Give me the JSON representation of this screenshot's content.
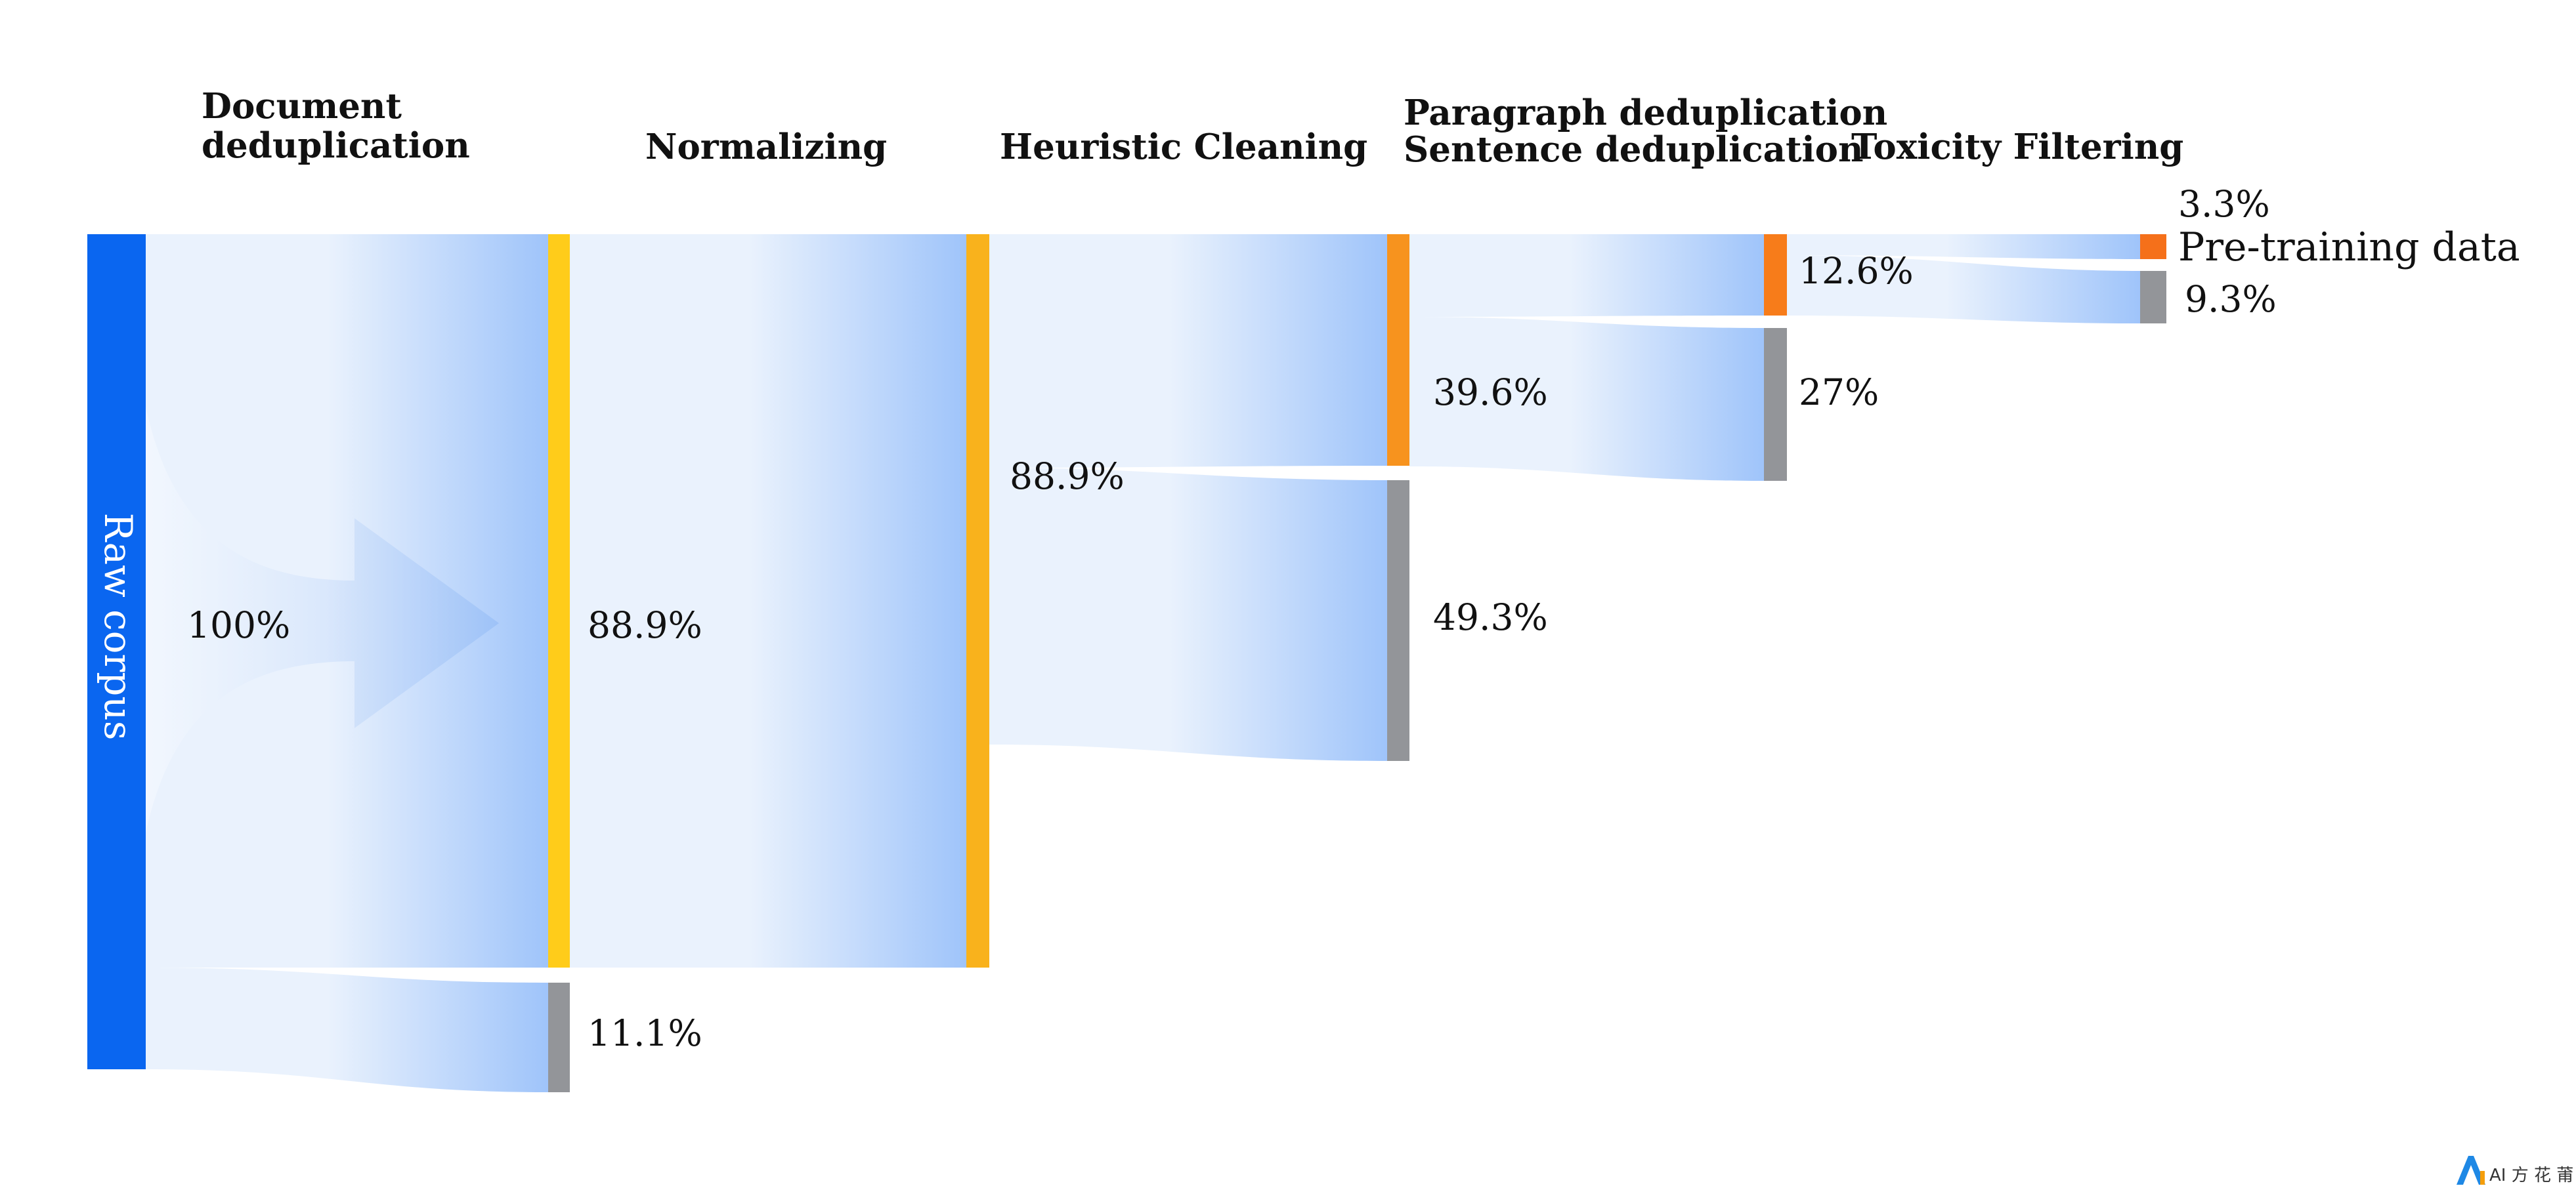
{
  "stages": [
    {
      "label_lines": [
        "Document",
        "deduplication"
      ]
    },
    {
      "label_lines": [
        "Normalizing"
      ]
    },
    {
      "label_lines": [
        "Heuristic Cleaning"
      ]
    },
    {
      "label_lines": [
        "Paragraph deduplication",
        "Sentence deduplication"
      ]
    },
    {
      "label_lines": [
        "Toxicity Filtering"
      ]
    }
  ],
  "source": {
    "label": "Raw corpus",
    "percent_label": "100%",
    "value": 100
  },
  "flows": [
    {
      "id": "kept-1",
      "from": "source",
      "value": 88.9,
      "label": "88.9%",
      "kind": "kept"
    },
    {
      "id": "removed-1",
      "from": "source",
      "value": 11.1,
      "label": "11.1%",
      "kind": "removed"
    },
    {
      "id": "kept-2",
      "from": "kept-1",
      "value": 88.9,
      "label": "88.9%",
      "kind": "kept"
    },
    {
      "id": "kept-3",
      "from": "kept-2",
      "value": 39.6,
      "kind": "kept"
    },
    {
      "id": "removed-3",
      "from": "kept-2",
      "value": 49.3,
      "label": "49.3%",
      "kind": "removed"
    },
    {
      "id": "kept-4",
      "from": "kept-3",
      "value": 12.6,
      "label": "12.6%",
      "kind": "kept"
    },
    {
      "id": "removed-4",
      "from": "kept-3",
      "value": 27,
      "label": "27%",
      "kind": "removed"
    },
    {
      "id": "kept-5",
      "from": "kept-4",
      "value": 3.3,
      "label": "3.3%",
      "kind": "kept"
    },
    {
      "id": "removed-5",
      "from": "kept-4",
      "value": 9.3,
      "label": "9.3%",
      "kind": "removed"
    }
  ],
  "node_labels": {
    "heuristic_kept": "88.9%",
    "paragraph_kept": "39.6%"
  },
  "result": {
    "label": "Pre-training data"
  },
  "colors": {
    "source": "#0A66F0",
    "stage1": "#FFCC1A",
    "stage2": "#F9B21C",
    "stage3": "#F7931E",
    "stage4": "#F77C1A",
    "stage5": "#F5701A",
    "removed": "#939599",
    "flow_light": "#EAF2FD",
    "flow_dark": "#9FC4FA",
    "logo_blue": "#1E88E5",
    "logo_orange": "#F59E0B",
    "logo_green": "#10B981"
  },
  "watermark": "AI 方 花 莆"
}
